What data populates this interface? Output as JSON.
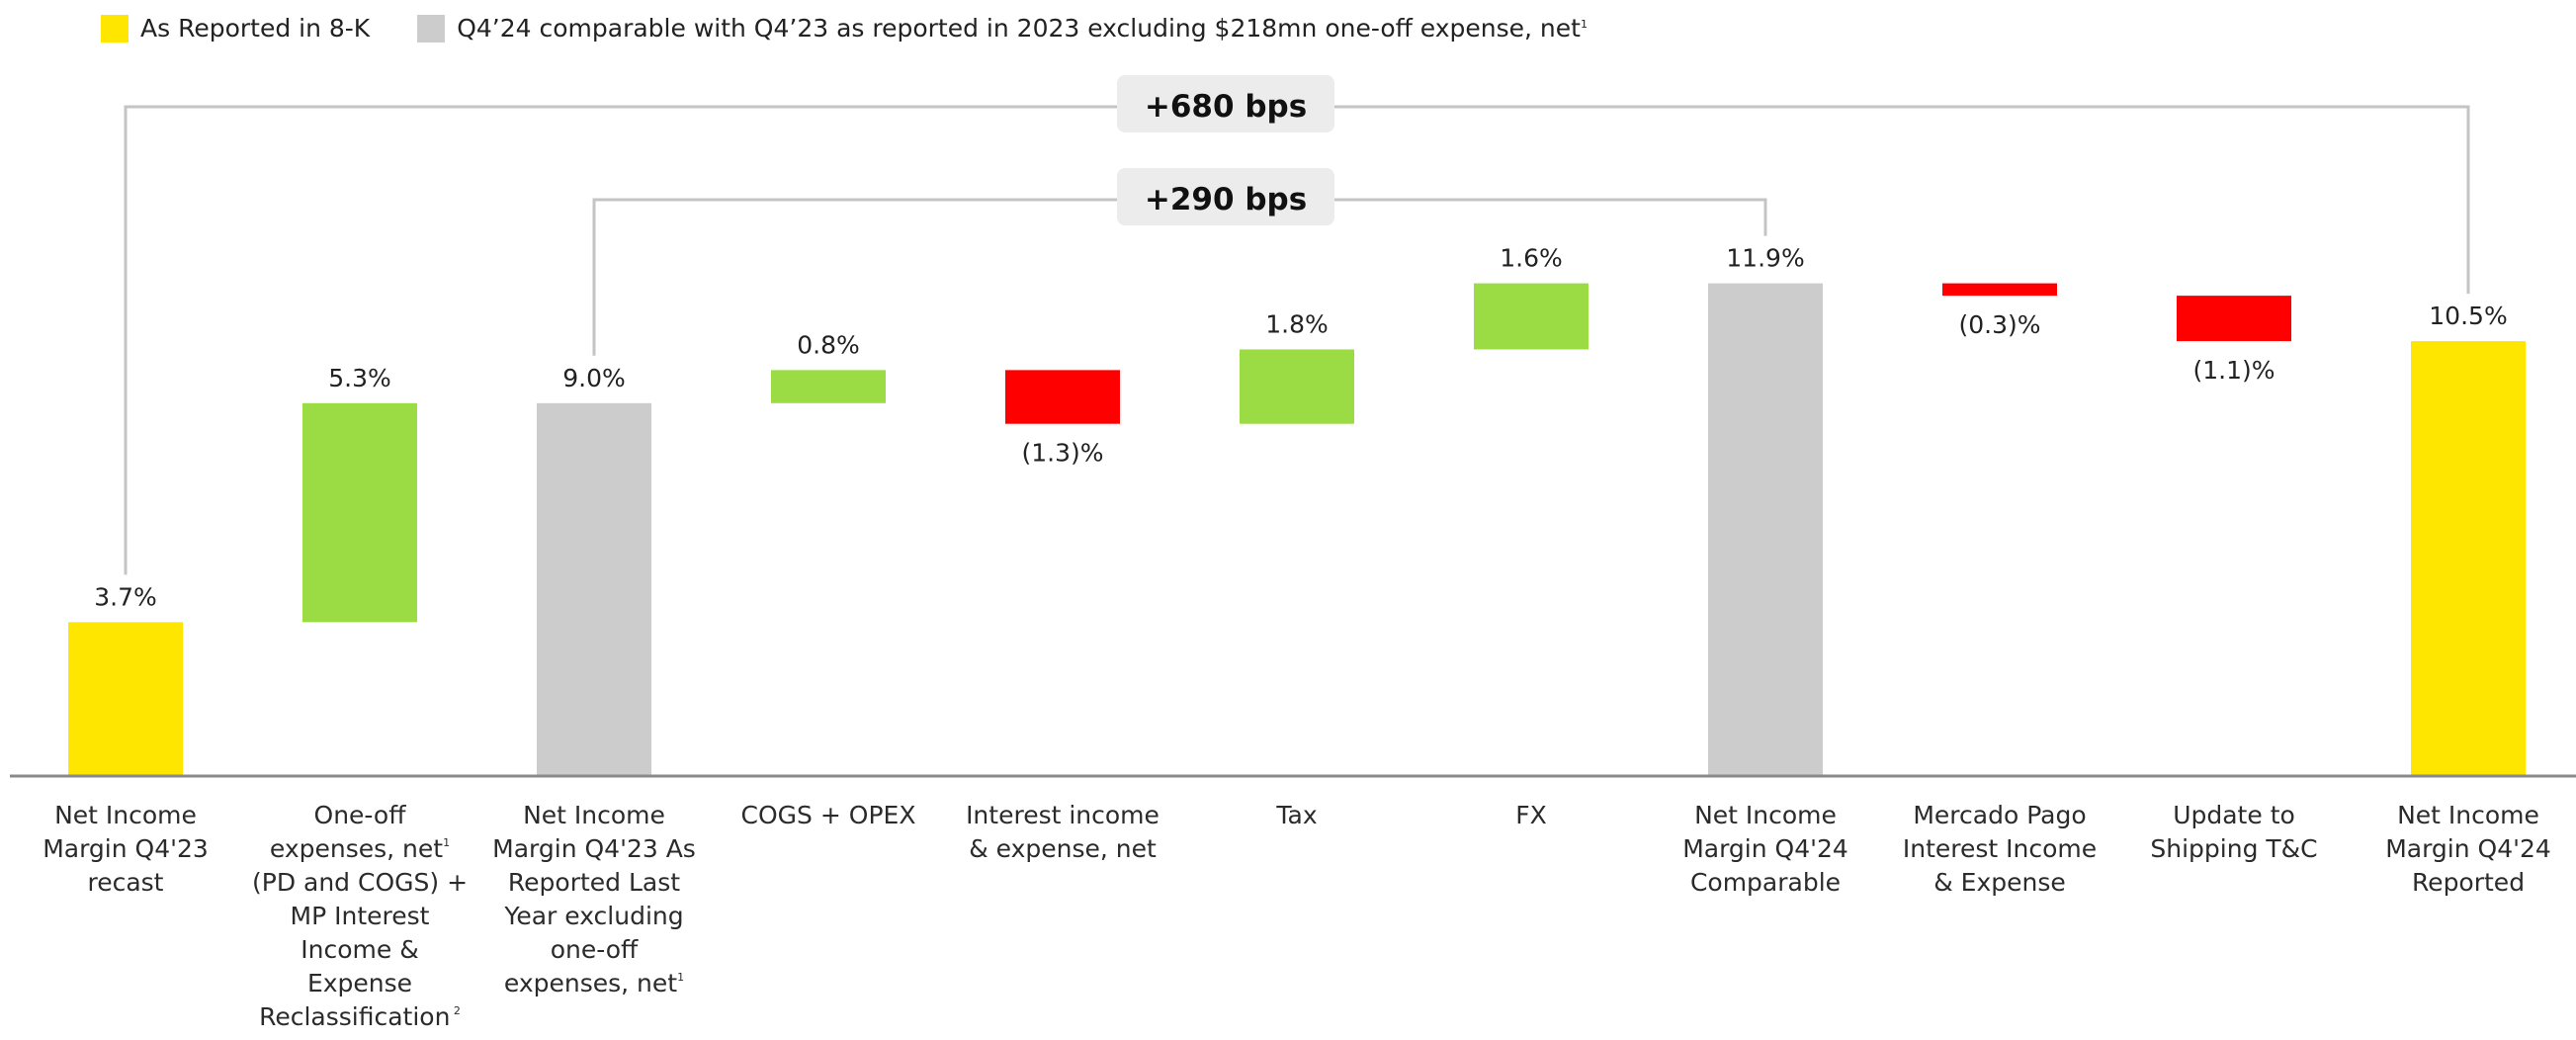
{
  "legend": [
    {
      "label": "As Reported in 8-K",
      "color": "#FFE600"
    },
    {
      "label": "Q4’24 comparable with Q4’23 as reported in 2023 excluding $218mn one-off expense, net",
      "sup": "1",
      "color": "#CCCCCC"
    }
  ],
  "colors": {
    "reported": "#FFE600",
    "comparable": "#CCCCCC",
    "increase": "#9BDC44",
    "decrease": "#FF0000",
    "axis": "#8a8a8a",
    "bracket": "#c4c4c4",
    "bracket_label_bg": "#ececec"
  },
  "chart_data": {
    "type": "bar",
    "subtype": "waterfall",
    "unit": "%",
    "categories": [
      "Net Income\nMargin Q4'23\nrecast",
      "One-off\nexpenses, net\n(PD and COGS) +\nMP Interest\nIncome &\nExpense\nReclassification",
      "Net Income\nMargin Q4'23 As\nReported Last\nYear excluding\none-off\nexpenses, net",
      "COGS + OPEX",
      "Interest income\n& expense, net",
      "Tax",
      "FX",
      "Net Income\nMargin Q4'24\nComparable",
      "Mercado Pago\nInterest Income\n& Expense",
      "Update to\nShipping T&C",
      "Net Income\nMargin Q4'24\nReported"
    ],
    "category_sups": [
      "",
      "1|2",
      "1",
      "",
      "",
      "",
      "",
      "",
      "",
      "",
      ""
    ],
    "bars": [
      {
        "kind": "total",
        "color_key": "reported",
        "start": 0,
        "end": 3.7,
        "label": "3.7%"
      },
      {
        "kind": "delta",
        "color_key": "increase",
        "start": 3.7,
        "end": 9.0,
        "label": "5.3%"
      },
      {
        "kind": "total",
        "color_key": "comparable",
        "start": 0,
        "end": 9.0,
        "label": "9.0%"
      },
      {
        "kind": "delta",
        "color_key": "increase",
        "start": 9.0,
        "end": 9.8,
        "label": "0.8%"
      },
      {
        "kind": "delta",
        "color_key": "decrease",
        "start": 9.8,
        "end": 8.5,
        "label": "(1.3)%"
      },
      {
        "kind": "delta",
        "color_key": "increase",
        "start": 8.5,
        "end": 10.3,
        "label": "1.8%"
      },
      {
        "kind": "delta",
        "color_key": "increase",
        "start": 10.3,
        "end": 11.9,
        "label": "1.6%"
      },
      {
        "kind": "total",
        "color_key": "comparable",
        "start": 0,
        "end": 11.9,
        "label": "11.9%"
      },
      {
        "kind": "delta",
        "color_key": "decrease",
        "start": 11.9,
        "end": 11.6,
        "label": "(0.3)%"
      },
      {
        "kind": "delta",
        "color_key": "decrease",
        "start": 11.6,
        "end": 10.5,
        "label": "(1.1)%"
      },
      {
        "kind": "total",
        "color_key": "reported",
        "start": 0,
        "end": 10.5,
        "label": "10.5%"
      }
    ],
    "brackets": [
      {
        "label": "+680 bps",
        "from_index": 0,
        "to_index": 10
      },
      {
        "label": "+290 bps",
        "from_index": 2,
        "to_index": 7
      }
    ]
  }
}
